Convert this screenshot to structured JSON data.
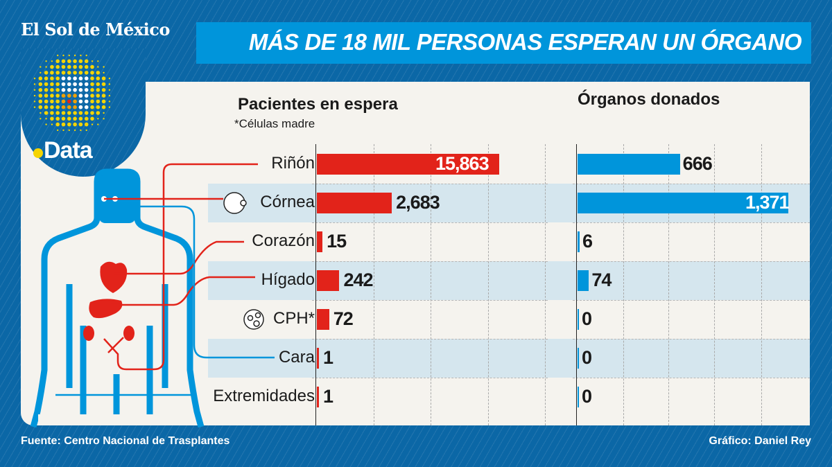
{
  "brand": "El Sol de México",
  "logo_text": "Data",
  "title": "MÁS DE 18 MIL PERSONAS ESPERAN UN ÓRGANO",
  "note": "*Células madre",
  "footer": {
    "source": "Fuente: Centro Nacional de Trasplantes",
    "credit": "Gráfico: Daniel Rey"
  },
  "colors": {
    "waiting": "#e2231a",
    "donated": "#0095db",
    "background": "#0b67a6",
    "panel": "#f5f3ee",
    "band": "#d5e6ee"
  },
  "chart_data": [
    {
      "type": "bar",
      "orientation": "horizontal",
      "title": "Pacientes en espera",
      "categories": [
        "Riñón",
        "Córnea",
        "Corazón",
        "Hígado",
        "CPH*",
        "Cara",
        "Extremidades"
      ],
      "values": [
        15863,
        2683,
        15,
        242,
        72,
        1,
        1
      ],
      "labels": [
        "15,863",
        "2,683",
        "15",
        "242",
        "72",
        "1",
        "1"
      ],
      "color": "#e2231a",
      "grid": true
    },
    {
      "type": "bar",
      "orientation": "horizontal",
      "title": "Órganos donados",
      "categories": [
        "Riñón",
        "Córnea",
        "Corazón",
        "Hígado",
        "CPH*",
        "Cara",
        "Extremidades"
      ],
      "values": [
        666,
        1371,
        6,
        74,
        0,
        0,
        0
      ],
      "labels": [
        "666",
        "1,371",
        "6",
        "74",
        "0",
        "0",
        "0"
      ],
      "color": "#0095db",
      "grid": true
    }
  ]
}
